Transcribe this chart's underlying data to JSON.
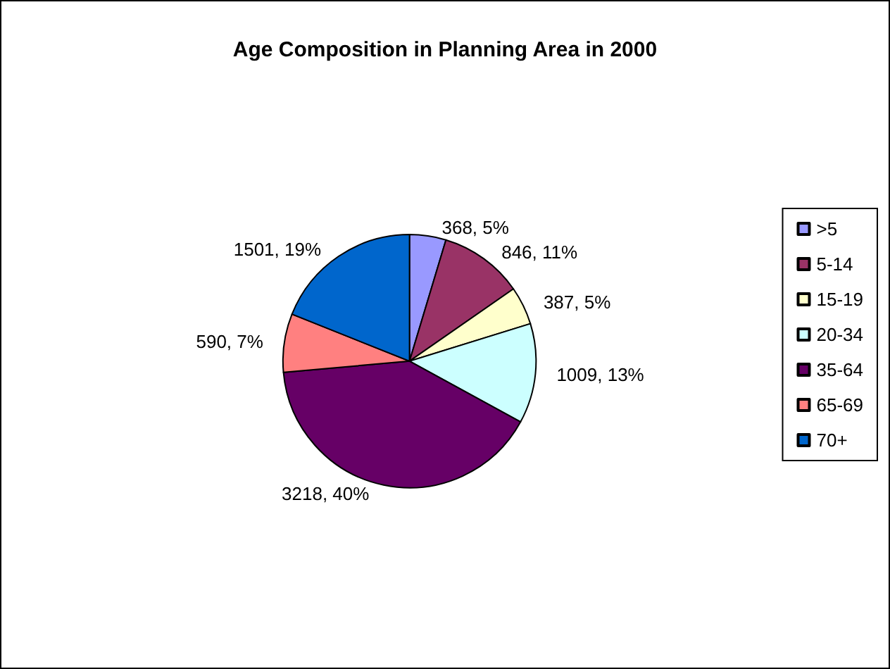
{
  "chart_data": {
    "type": "pie",
    "title": "Age Composition in Planning Area in 2000",
    "categories": [
      ">5",
      "5-14",
      "15-19",
      "20-34",
      "35-64",
      "65-69",
      "70+"
    ],
    "values": [
      368,
      846,
      387,
      1009,
      3218,
      590,
      1501
    ],
    "colors": [
      "#9999ff",
      "#993366",
      "#ffffcc",
      "#ccffff",
      "#660066",
      "#ff8080",
      "#0066cc"
    ],
    "value_labels": [
      "368, 5%",
      "846, 11%",
      "387, 5%",
      "1009, 13%",
      "3218, 40%",
      "590, 7%",
      "1501, 19%"
    ],
    "legend": "right"
  }
}
